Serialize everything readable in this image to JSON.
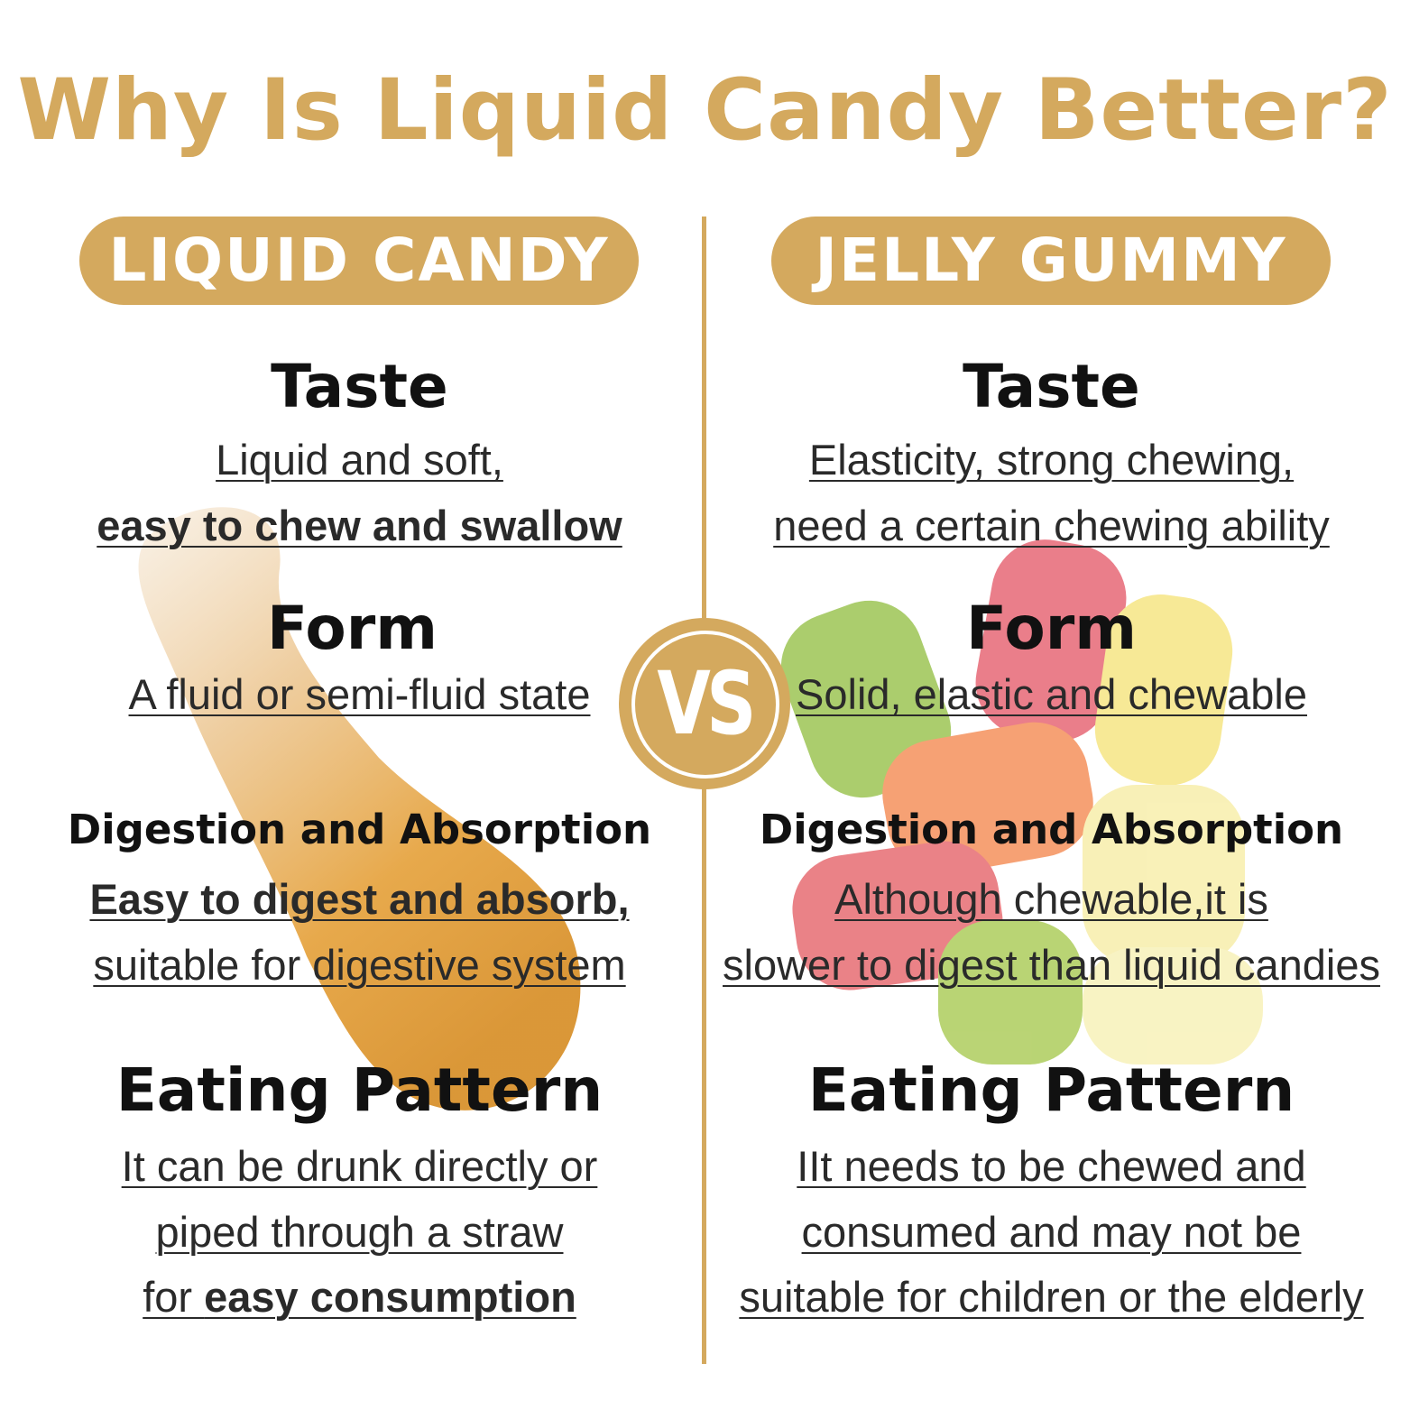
{
  "title": "Why Is Liquid Candy Better?",
  "colors": {
    "accent": "#D4A95E",
    "heading": "#111111",
    "body": "#2a2a2a"
  },
  "vs_label": "VS",
  "left": {
    "label": "LIQUID CANDY",
    "taste": {
      "heading": "Taste",
      "line1": "Liquid and soft,",
      "line2_bold": "easy to chew and swallow"
    },
    "form": {
      "heading": "Form",
      "line1": "A fluid or semi-fluid state"
    },
    "digestion": {
      "heading": "Digestion and Absorption",
      "line1_bold": "Easy to digest and absorb,",
      "line2": "suitable for digestive system"
    },
    "eating": {
      "heading": "Eating Pattern",
      "line1": "It can be drunk directly or",
      "line2": "piped through a straw",
      "line3_prefix": "for ",
      "line3_bold": "easy consumption"
    }
  },
  "right": {
    "label": "JELLY GUMMY",
    "taste": {
      "heading": "Taste",
      "line1": "Elasticity, strong chewing,",
      "line2": "need a certain chewing ability"
    },
    "form": {
      "heading": "Form",
      "line1": "Solid, elastic and chewable"
    },
    "digestion": {
      "heading": "Digestion and Absorption",
      "line1": "Although chewable,it is",
      "line2": "slower to digest than liquid candies"
    },
    "eating": {
      "heading": "Eating Pattern",
      "line1": "IIt needs to be chewed and",
      "line2": "consumed and may not be",
      "line3": "suitable for children or the elderly"
    }
  }
}
